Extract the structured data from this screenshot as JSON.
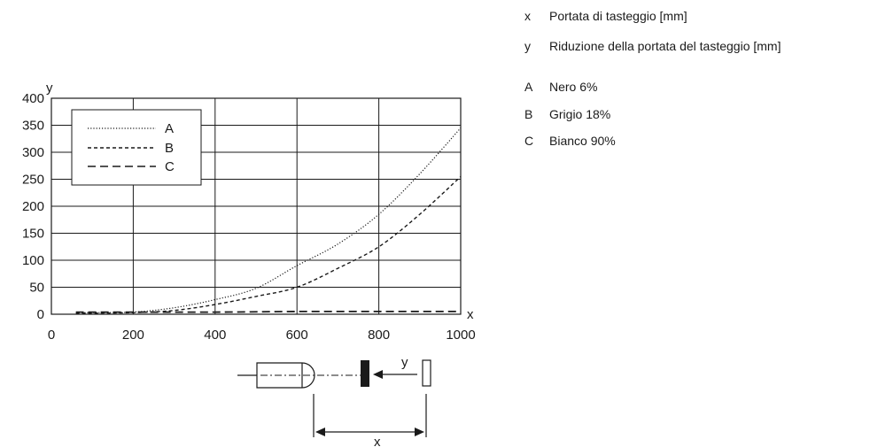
{
  "key": {
    "axes": [
      {
        "code": "x",
        "text": "Portata di tasteggio [mm]"
      },
      {
        "code": "y",
        "text": "Riduzione della portata del tasteggio [mm]"
      }
    ],
    "series": [
      {
        "code": "A",
        "text": "Nero 6%"
      },
      {
        "code": "B",
        "text": "Grigio 18%"
      },
      {
        "code": "C",
        "text": "Bianco 90%"
      }
    ]
  },
  "diagram": {
    "x_label": "x",
    "y_label": "y"
  },
  "chart_data": {
    "type": "line",
    "xlabel": "x",
    "ylabel": "y",
    "xlim": [
      0,
      1000
    ],
    "ylim": [
      0,
      400
    ],
    "x_ticks": [
      0,
      200,
      400,
      600,
      800,
      1000
    ],
    "y_ticks": [
      0,
      50,
      100,
      150,
      200,
      250,
      300,
      350,
      400
    ],
    "grid": true,
    "legend_position": "top-left",
    "series": [
      {
        "name": "A",
        "style": "dotted",
        "x": [
          60,
          100,
          200,
          300,
          400,
          500,
          600,
          700,
          800,
          900,
          1000
        ],
        "y": [
          3,
          3,
          4,
          12,
          27,
          48,
          90,
          130,
          185,
          260,
          345
        ]
      },
      {
        "name": "B",
        "style": "short-dashed",
        "x": [
          60,
          100,
          200,
          300,
          400,
          500,
          600,
          700,
          800,
          900,
          1000
        ],
        "y": [
          2,
          2,
          3,
          7,
          18,
          33,
          50,
          85,
          125,
          185,
          255
        ]
      },
      {
        "name": "C",
        "style": "long-dashed",
        "x": [
          60,
          200,
          400,
          600,
          800,
          1000
        ],
        "y": [
          4,
          4,
          4,
          5,
          5,
          5
        ]
      }
    ]
  }
}
